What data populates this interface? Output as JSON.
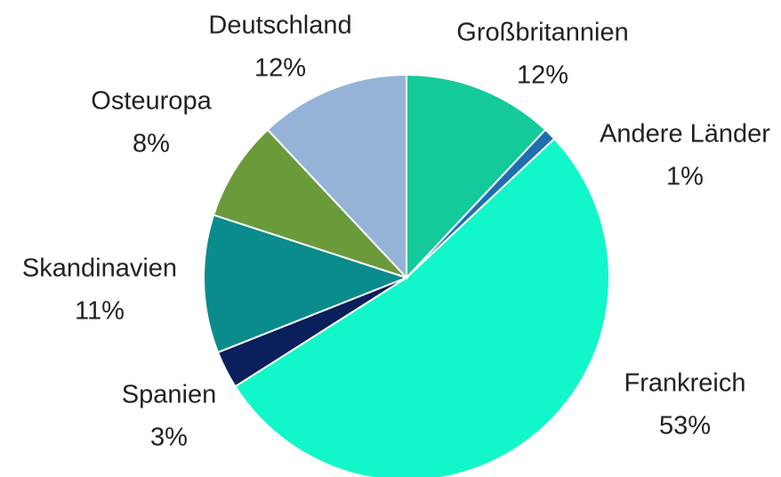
{
  "chart_data": {
    "type": "pie",
    "categories": [
      "Großbritannien",
      "Andere Länder",
      "Frankreich",
      "Spanien",
      "Skandinavien",
      "Osteuropa",
      "Deutschland"
    ],
    "values": [
      12,
      1,
      53,
      3,
      11,
      8,
      12
    ],
    "value_labels": [
      "12%",
      "1%",
      "53%",
      "3%",
      "11%",
      "8%",
      "12%"
    ],
    "colors": [
      "#14c99a",
      "#1f6fb0",
      "#12f7c9",
      "#0a1f5c",
      "#0a8c8c",
      "#6b9a3a",
      "#95b3d7"
    ]
  }
}
